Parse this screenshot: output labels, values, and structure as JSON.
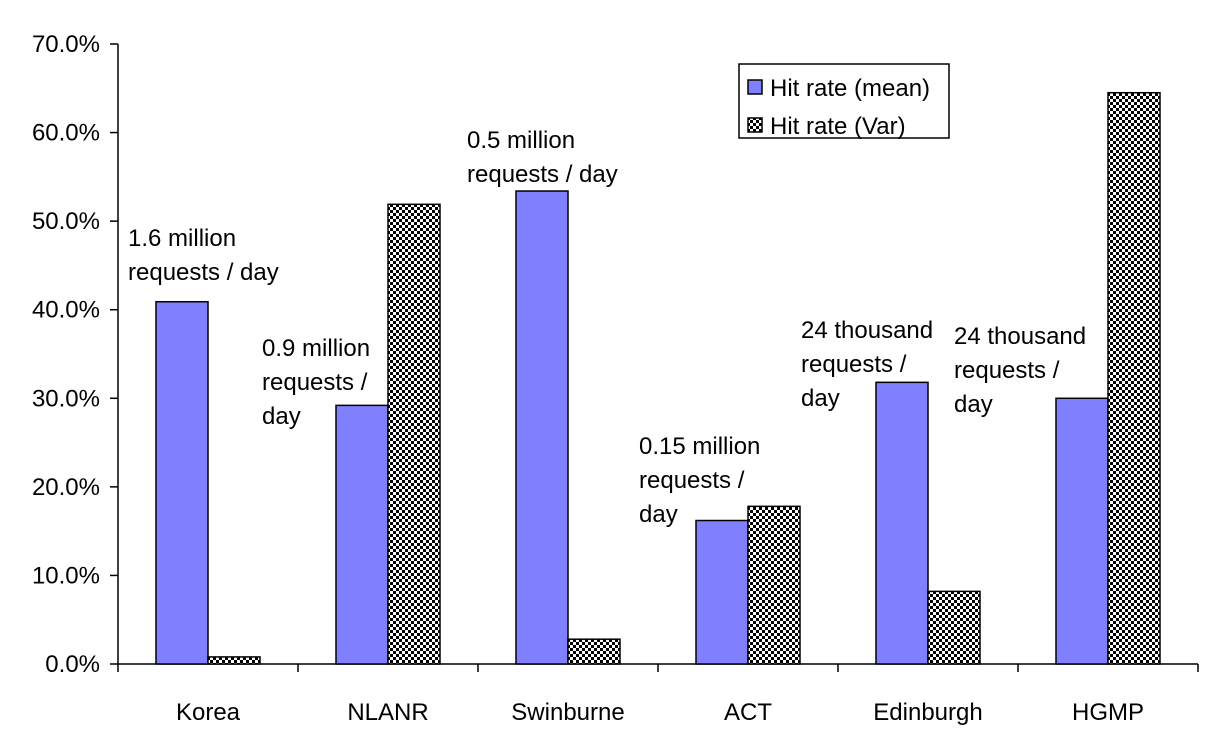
{
  "chart_data": {
    "type": "bar",
    "categories": [
      "Korea",
      "NLANR",
      "Swinburne",
      "ACT",
      "Edinburgh",
      "HGMP"
    ],
    "series": [
      {
        "name": "Hit rate (mean)",
        "values": [
          40.9,
          29.2,
          53.4,
          16.2,
          31.8,
          30.0
        ],
        "color": "#8080ff",
        "pattern": "solid"
      },
      {
        "name": "Hit rate (Var)",
        "values": [
          0.8,
          51.9,
          2.8,
          17.8,
          8.2,
          64.5
        ],
        "color": "#000000",
        "pattern": "checkerboard"
      }
    ],
    "ylim": [
      0,
      70
    ],
    "yticks": [
      0,
      10,
      20,
      30,
      40,
      50,
      60,
      70
    ],
    "ytick_labels": [
      "0.0%",
      "10.0%",
      "20.0%",
      "30.0%",
      "40.0%",
      "50.0%",
      "60.0%",
      "70.0%"
    ],
    "title": "",
    "xlabel": "",
    "ylabel": "",
    "grid": false,
    "legend_position": "top-right",
    "annotations": [
      {
        "category": "Korea",
        "lines": [
          "1.6 million",
          "requests / day"
        ]
      },
      {
        "category": "NLANR",
        "lines": [
          "0.9 million",
          "requests /",
          "day"
        ]
      },
      {
        "category": "Swinburne",
        "lines": [
          "0.5 million",
          "requests / day"
        ]
      },
      {
        "category": "ACT",
        "lines": [
          "0.15 million",
          "requests /",
          "day"
        ]
      },
      {
        "category": "Edinburgh",
        "lines": [
          "24 thousand",
          "requests /",
          "day"
        ]
      },
      {
        "category": "HGMP",
        "lines": [
          "24 thousand",
          "requests /",
          "day"
        ]
      }
    ]
  }
}
